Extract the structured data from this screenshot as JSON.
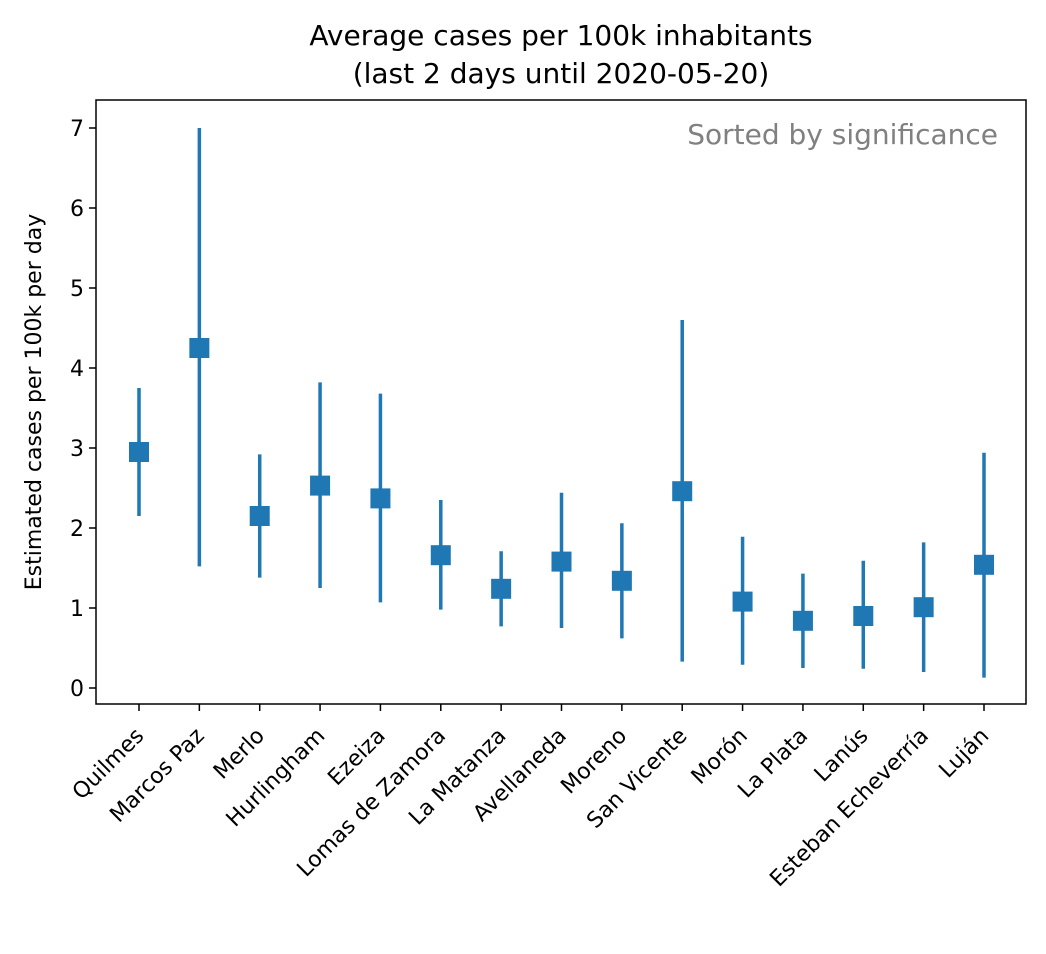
{
  "chart_data": {
    "type": "scatter",
    "title_lines": [
      "Average cases per 100k inhabitants",
      "(last 2 days until 2020-05-20)"
    ],
    "xlabel": "",
    "ylabel": "Estimated cases per 100k per day",
    "annotation": "Sorted by significance",
    "ylim": [
      -0.2,
      7.35
    ],
    "yticks": [
      0,
      1,
      2,
      3,
      4,
      5,
      6,
      7
    ],
    "grid": false,
    "color": "#1f77b4",
    "categories": [
      "Quilmes",
      "Marcos Paz",
      "Merlo",
      "Hurlingham",
      "Ezeiza",
      "Lomas de Zamora",
      "La Matanza",
      "Avellaneda",
      "Moreno",
      "San Vicente",
      "Morón",
      "La Plata",
      "Lanús",
      "Esteban Echeverría",
      "Luján"
    ],
    "values": [
      2.95,
      4.25,
      2.15,
      2.53,
      2.37,
      1.66,
      1.24,
      1.58,
      1.34,
      2.46,
      1.08,
      0.84,
      0.9,
      1.01,
      1.54
    ],
    "lower": [
      2.15,
      1.52,
      1.38,
      1.25,
      1.07,
      0.98,
      0.77,
      0.75,
      0.62,
      0.33,
      0.29,
      0.25,
      0.24,
      0.2,
      0.13
    ],
    "upper": [
      3.75,
      7.0,
      2.92,
      3.82,
      3.68,
      2.35,
      1.71,
      2.44,
      2.06,
      4.6,
      1.89,
      1.43,
      1.59,
      1.82,
      2.94
    ]
  }
}
